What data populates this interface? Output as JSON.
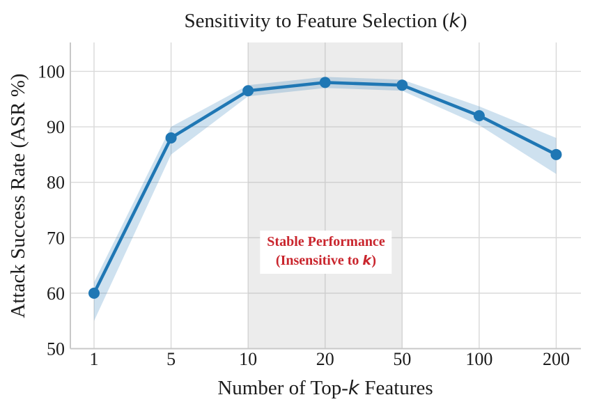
{
  "chart_data": {
    "type": "line",
    "title": {
      "pre": "Sensitivity to Feature Selection (",
      "k": "k",
      "post": ")"
    },
    "xlabel": {
      "pre": "Number of Top-",
      "k": "k",
      "post": " Features"
    },
    "ylabel": "Attack Success Rate (ASR %)",
    "x_tick_labels": [
      "1",
      "5",
      "10",
      "20",
      "50",
      "100",
      "200"
    ],
    "yticks": [
      50,
      60,
      70,
      80,
      90,
      100
    ],
    "ylim": [
      50,
      105.2
    ],
    "grid": true,
    "series": [
      {
        "name": "Attack Success Rate",
        "values": [
          60,
          88,
          96.5,
          98,
          97.5,
          92,
          85
        ],
        "band_low": [
          55,
          85,
          95.5,
          97,
          96.5,
          90.3,
          81.5
        ],
        "band_high": [
          62,
          90,
          97.5,
          99,
          98.5,
          93.7,
          88
        ]
      }
    ],
    "highlight_span": {
      "from": "10",
      "to": "50",
      "annotation_line1": "Stable Performance",
      "annotation_line2": {
        "pre": "(Insensitive to ",
        "k": "k",
        "post": ")"
      }
    },
    "colors": {
      "line": "#1f77b4",
      "band": "#1f77b4",
      "band_opacity": 0.22,
      "span": "#a8a8a8",
      "span_opacity": 0.22,
      "grid": "#d9d9d9",
      "spine": "#c8c8c8",
      "text": "#1c1c1c",
      "annotation": "#c9252d"
    }
  }
}
